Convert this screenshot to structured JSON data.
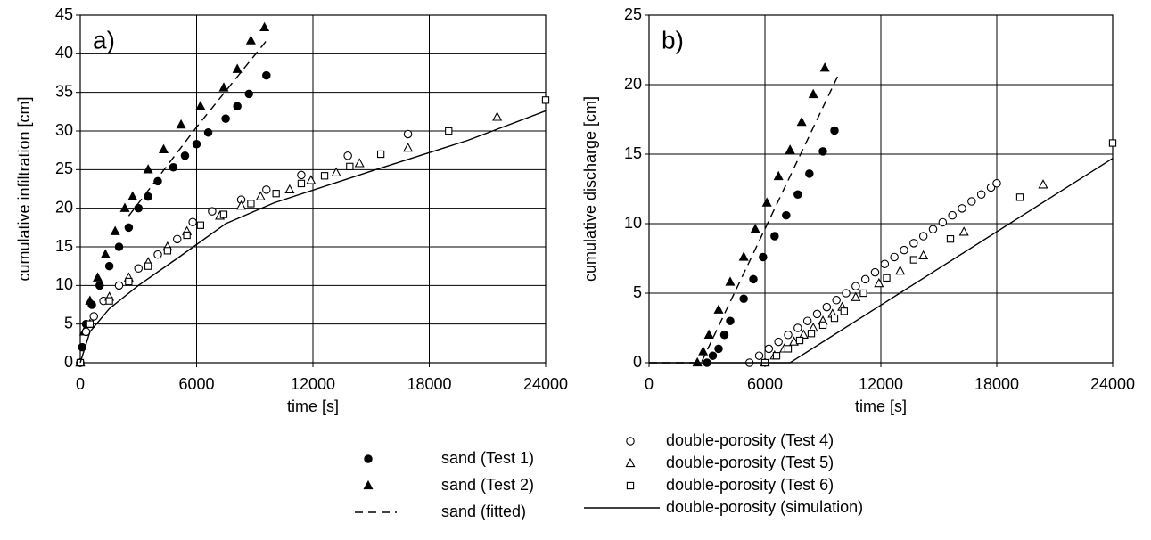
{
  "chart_data": [
    {
      "type": "scatter",
      "annotation": "a)",
      "x_label": "time [s]",
      "y_label": "cumulative infiltration  [cm]",
      "xlim": [
        0,
        24000
      ],
      "xticks": [
        0,
        6000,
        12000,
        18000,
        24000
      ],
      "ylim": [
        0,
        45
      ],
      "yticks": [
        0,
        5,
        10,
        15,
        20,
        25,
        30,
        35,
        40,
        45
      ],
      "grid": true,
      "series": [
        {
          "name": "sand (Test 1)",
          "color": "#000000",
          "marker": "circle",
          "filled": true,
          "x": [
            0,
            100,
            300,
            600,
            1000,
            1500,
            2000,
            2500,
            3000,
            3500,
            4000,
            4800,
            5400,
            6000,
            6600,
            7500,
            8100,
            8700,
            9600
          ],
          "values": [
            0,
            2,
            5,
            7.5,
            10,
            12.5,
            15,
            17.5,
            20,
            21.5,
            23.5,
            25.3,
            26.8,
            28.3,
            29.8,
            31.6,
            33.2,
            34.8,
            37.2
          ]
        },
        {
          "name": "sand (Test 2)",
          "color": "#000000",
          "marker": "triangle",
          "filled": true,
          "x": [
            0,
            200,
            500,
            900,
            1300,
            1800,
            2300,
            2700,
            3500,
            4300,
            5200,
            6200,
            7400,
            8100,
            8800,
            9500
          ],
          "values": [
            0,
            4,
            8,
            11,
            14,
            17,
            20,
            21.5,
            25,
            27.6,
            30.8,
            33.2,
            35.6,
            38,
            41.7,
            43.4
          ]
        },
        {
          "name": "sand (fitted)",
          "color": "#000000",
          "line_style": "dashed",
          "x": [
            2500,
            6000,
            9700
          ],
          "values": [
            19,
            30.5,
            42
          ]
        },
        {
          "name": "double-porosity (Test 4)",
          "color": "#000000",
          "marker": "circle",
          "filled": false,
          "x": [
            0,
            300,
            700,
            1200,
            2000,
            3000,
            4000,
            5000,
            5800,
            6800,
            8300,
            9600,
            11400,
            13800,
            16900
          ],
          "values": [
            0,
            4,
            6,
            8,
            10,
            12.2,
            14,
            16,
            18.2,
            19.6,
            21.1,
            22.4,
            24.3,
            26.8,
            29.6
          ]
        },
        {
          "name": "double-porosity (Test 5)",
          "color": "#000000",
          "marker": "triangle",
          "filled": false,
          "x": [
            0,
            500,
            1500,
            2500,
            3500,
            4500,
            5500,
            7200,
            8300,
            9300,
            10800,
            11900,
            13200,
            14400,
            16900,
            21500
          ],
          "values": [
            0,
            5,
            8.5,
            11,
            13,
            15,
            17,
            19,
            20.3,
            21.5,
            22.4,
            23.6,
            24.6,
            25.8,
            27.8,
            31.8
          ]
        },
        {
          "name": "double-porosity (Test 6)",
          "color": "#000000",
          "marker": "square",
          "filled": false,
          "x": [
            0,
            500,
            1500,
            2500,
            3500,
            4500,
            5500,
            6200,
            7400,
            8800,
            10100,
            11400,
            12600,
            13900,
            15500,
            19000,
            24000
          ],
          "values": [
            0,
            5,
            8,
            10.5,
            12.5,
            14.5,
            16.5,
            17.8,
            19.2,
            20.6,
            21.9,
            23.2,
            24.2,
            25.4,
            27,
            30,
            34
          ]
        },
        {
          "name": "double-porosity (simulation)",
          "color": "#000000",
          "line_style": "solid",
          "x": [
            0,
            500,
            1500,
            3000,
            5000,
            7500,
            10000,
            15000,
            20000,
            24000
          ],
          "values": [
            0,
            4,
            7,
            10,
            13.5,
            18,
            20.7,
            24.8,
            28.8,
            32.6
          ]
        }
      ]
    },
    {
      "type": "scatter",
      "annotation": "b)",
      "x_label": "time [s]",
      "y_label": "cumulative discharge  [cm]",
      "xlim": [
        0,
        24000
      ],
      "xticks": [
        0,
        6000,
        12000,
        18000,
        24000
      ],
      "ylim": [
        0,
        25
      ],
      "yticks": [
        0,
        5,
        10,
        15,
        20,
        25
      ],
      "grid": true,
      "series": [
        {
          "color": "#000000",
          "marker": "circle",
          "filled": true,
          "x": [
            3000,
            3300,
            3600,
            3900,
            4200,
            4900,
            5400,
            5900,
            6500,
            7100,
            7700,
            8300,
            9000,
            9600
          ],
          "values": [
            0,
            0.5,
            1,
            2,
            3,
            4.6,
            6,
            7.6,
            9.1,
            10.6,
            12.1,
            13.6,
            15.2,
            16.7
          ]
        },
        {
          "color": "#000000",
          "marker": "triangle",
          "filled": true,
          "x": [
            2500,
            2800,
            3100,
            3600,
            4200,
            4900,
            5500,
            6100,
            6700,
            7300,
            7900,
            8500,
            9100
          ],
          "values": [
            0,
            0.8,
            2,
            3.8,
            5.8,
            7.6,
            9.6,
            11.5,
            13.4,
            15.3,
            17.3,
            19.3,
            21.2
          ]
        },
        {
          "color": "#000000",
          "line_style": "dashed",
          "x": [
            0,
            2700,
            9800
          ],
          "values": [
            0,
            0,
            20.7
          ]
        },
        {
          "color": "#000000",
          "marker": "circle",
          "filled": false,
          "x": [
            5200,
            5700,
            6200,
            6700,
            7200,
            7700,
            8200,
            8700,
            9200,
            9700,
            10200,
            10700,
            11200,
            11700,
            12200,
            12700,
            13200,
            13700,
            14200,
            14700,
            15200,
            15700,
            16200,
            16700,
            17200,
            17700,
            18000
          ],
          "values": [
            0,
            0.5,
            1,
            1.5,
            2,
            2.5,
            3,
            3.5,
            4,
            4.5,
            5,
            5.5,
            6,
            6.5,
            7.1,
            7.6,
            8.1,
            8.6,
            9.1,
            9.6,
            10.1,
            10.6,
            11.1,
            11.6,
            12.1,
            12.6,
            12.9
          ]
        },
        {
          "color": "#000000",
          "marker": "triangle",
          "filled": false,
          "x": [
            6000,
            6500,
            7000,
            7500,
            8000,
            8500,
            9000,
            9500,
            10000,
            10700,
            11900,
            13000,
            14200,
            16300,
            20400
          ],
          "values": [
            0,
            0.5,
            1,
            1.5,
            2,
            2.5,
            3,
            3.5,
            4,
            4.7,
            5.7,
            6.6,
            7.7,
            9.4,
            12.8
          ]
        },
        {
          "color": "#000000",
          "marker": "square",
          "filled": false,
          "x": [
            6000,
            6600,
            7200,
            7800,
            8400,
            9000,
            9600,
            10100,
            11100,
            12300,
            13700,
            15600,
            19200,
            24000
          ],
          "values": [
            0,
            0.5,
            1,
            1.6,
            2.1,
            2.7,
            3.2,
            3.7,
            5,
            6.1,
            7.4,
            8.9,
            11.9,
            15.8
          ]
        },
        {
          "color": "#000000",
          "line_style": "solid",
          "x": [
            0,
            7300,
            24000
          ],
          "values": [
            0,
            0,
            14.7
          ]
        }
      ]
    }
  ]
}
